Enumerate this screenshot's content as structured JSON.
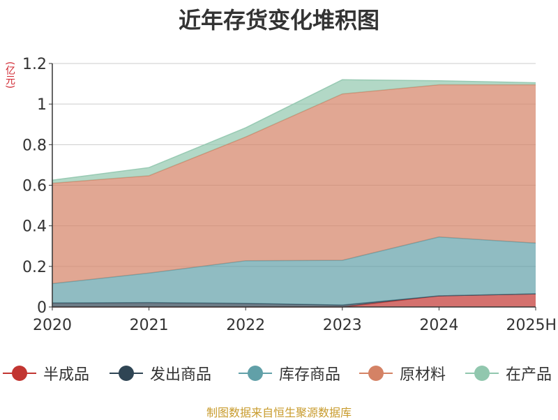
{
  "chart_data": {
    "type": "area",
    "stacked": true,
    "title": "近年存货变化堆积图",
    "ylabel": "(亿元)",
    "xlabel": "",
    "categories": [
      "2020",
      "2021",
      "2022",
      "2023",
      "2024",
      "2025H"
    ],
    "ylim": [
      0,
      1.2
    ],
    "yticks": [
      "0",
      "0.2",
      "0.4",
      "0.6",
      "0.8",
      "1",
      "1.2"
    ],
    "grid": true,
    "legend_position": "bottom",
    "series": [
      {
        "name": "半成品",
        "color": "#c23531",
        "values": [
          0.0,
          0.0,
          0.0,
          0.0,
          0.055,
          0.065
        ]
      },
      {
        "name": "发出商品",
        "color": "#2f4554",
        "values": [
          0.02,
          0.022,
          0.018,
          0.01,
          0.0,
          0.0
        ]
      },
      {
        "name": "库存商品",
        "color": "#61a0a8",
        "values": [
          0.095,
          0.145,
          0.21,
          0.22,
          0.29,
          0.25
        ]
      },
      {
        "name": "原材料",
        "color": "#d48265",
        "values": [
          0.495,
          0.48,
          0.61,
          0.82,
          0.75,
          0.78
        ]
      },
      {
        "name": "在产品",
        "color": "#91c7ae",
        "values": [
          0.015,
          0.04,
          0.045,
          0.07,
          0.02,
          0.01
        ]
      }
    ],
    "source": "制图数据来自恒生聚源数据库"
  }
}
